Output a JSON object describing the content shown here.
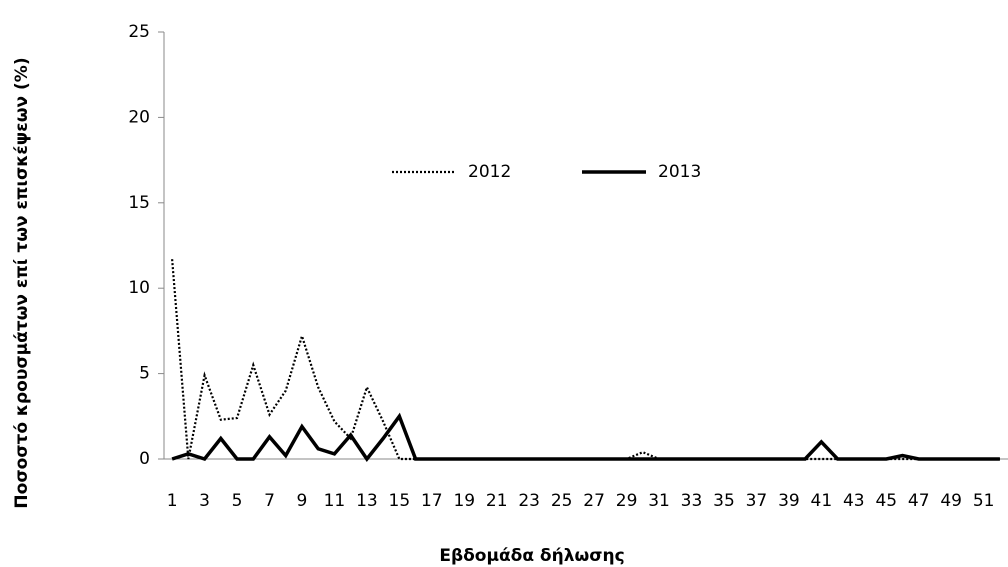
{
  "chart_data": {
    "type": "line",
    "y_label": "Ποσοστό κρουσμάτων επί των επισκέψεων (%)",
    "x_label": "Εβδομάδα δήλωσης",
    "categories": [
      "1",
      null,
      "3",
      null,
      "5",
      null,
      "7",
      null,
      "9",
      null,
      "11",
      null,
      "13",
      null,
      "15",
      null,
      "17",
      null,
      "19",
      null,
      "21",
      null,
      "23",
      null,
      "25",
      null,
      "27",
      null,
      "29",
      null,
      "31",
      null,
      "33",
      null,
      "35",
      null,
      "37",
      null,
      "39",
      null,
      "41",
      null,
      "43",
      null,
      "45",
      null,
      "47",
      null,
      "49",
      null,
      "51",
      null
    ],
    "series": [
      {
        "name": "2012",
        "color": "#000000",
        "dash": "dotted",
        "values": [
          11.7,
          0,
          4.9,
          2.3,
          2.4,
          5.5,
          2.6,
          4,
          7.2,
          4.2,
          2.2,
          1.2,
          4.2,
          2.2,
          0,
          0,
          0,
          0,
          0,
          0,
          0,
          0,
          0,
          0,
          0,
          0,
          0,
          0,
          0,
          0.4,
          0,
          0,
          0,
          0,
          0,
          0,
          0,
          0,
          0,
          0,
          0,
          0,
          0,
          0,
          0,
          0,
          0,
          0,
          0,
          0,
          0,
          0
        ]
      },
      {
        "name": "2013",
        "color": "#000000",
        "dash": "solid",
        "values": [
          0,
          0.3,
          0,
          1.2,
          0,
          0,
          1.3,
          0.2,
          1.9,
          0.6,
          0.3,
          1.4,
          0,
          1.2,
          2.5,
          0,
          0,
          0,
          0,
          0,
          0,
          0,
          0,
          0,
          0,
          0,
          0,
          0,
          0,
          0,
          0,
          0,
          0,
          0,
          0,
          0,
          0,
          0,
          0,
          0,
          1,
          0,
          0,
          0,
          0,
          0.2,
          0,
          0,
          0,
          0,
          0,
          0
        ]
      }
    ],
    "ylim": [
      0,
      25
    ],
    "yticks": [
      0,
      5,
      10,
      15,
      20,
      25
    ],
    "legend": "center"
  }
}
